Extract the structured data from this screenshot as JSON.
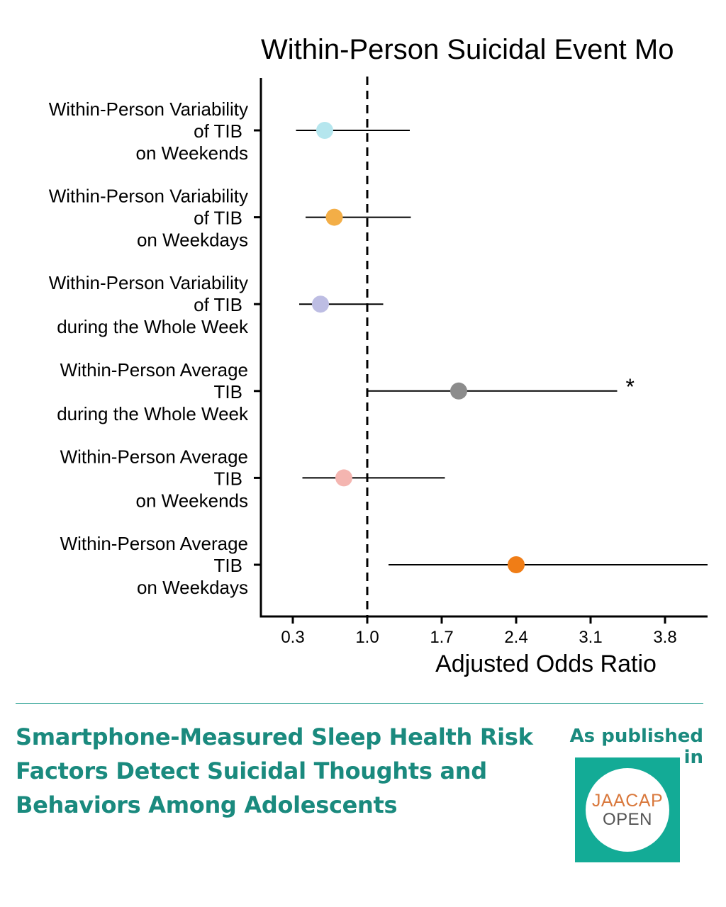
{
  "chart_data": {
    "type": "scatter",
    "title": "Within-Person Suicidal Event Mo",
    "xlabel": "Adjusted Odds Ratio",
    "ylabel": "",
    "xlim": [
      0.0,
      4.2
    ],
    "xticks": [
      0.3,
      1.0,
      1.7,
      2.4,
      3.1,
      3.8
    ],
    "xtick_labels": [
      "0.3",
      "1.0",
      "1.7",
      "2.4",
      "3.1",
      "3.8"
    ],
    "reference_line": 1.0,
    "grid": false,
    "categories": [
      [
        "Within-Person Variability",
        "of TIB",
        "on Weekends"
      ],
      [
        "Within-Person Variability",
        "of TIB",
        "on Weekdays"
      ],
      [
        "Within-Person Variability",
        "of TIB",
        "during the Whole Week"
      ],
      [
        "Within-Person Average",
        "TIB",
        "during the Whole Week"
      ],
      [
        "Within-Person Average",
        "TIB",
        "on Weekends"
      ],
      [
        "Within-Person Average",
        "TIB",
        "on Weekdays"
      ]
    ],
    "estimates": [
      0.6,
      0.69,
      0.56,
      1.86,
      0.78,
      2.4
    ],
    "ci_lower": [
      0.33,
      0.42,
      0.36,
      1.0,
      0.39,
      1.2
    ],
    "ci_upper": [
      1.4,
      1.41,
      1.15,
      3.35,
      1.73,
      4.2
    ],
    "significance": [
      "",
      "",
      "",
      "*",
      "",
      ""
    ],
    "colors": [
      "#b5e6ee",
      "#f3ae47",
      "#bdbde3",
      "#8c8c8c",
      "#f4b5b0",
      "#f07d16"
    ]
  },
  "footer": {
    "paper_title": "Smartphone-Measured Sleep Health Risk Factors Detect Suicidal Thoughts and Behaviors Among Adolescents",
    "published_label": "As published in",
    "logo_top": "JAACAP",
    "logo_bottom": "OPEN"
  }
}
